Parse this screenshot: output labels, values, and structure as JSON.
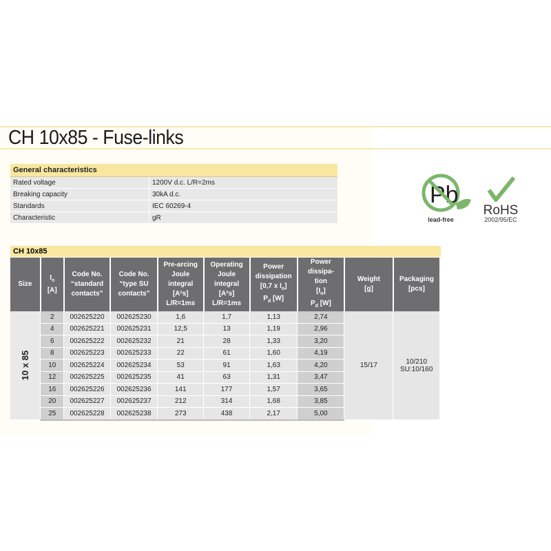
{
  "title": "CH 10x85 - Fuse-links",
  "general": {
    "header": "General characteristics",
    "rows": [
      {
        "k": "Rated voltage",
        "v": "1200V d.c. L/R=2ms"
      },
      {
        "k": "Breaking capacity",
        "v": "30kA d.c."
      },
      {
        "k": "Standards",
        "v": "IEC 60269-4"
      },
      {
        "k": "Characteristic",
        "v": "gR"
      }
    ]
  },
  "logos": {
    "lead_free": "lead-free",
    "pb": "Pb",
    "rohs": "RoHS",
    "rohs_directive": "2002/95/EC",
    "colors": {
      "green": "#7cb66b"
    }
  },
  "table": {
    "title": "CH 10x85",
    "headers": {
      "size": "Size",
      "in_1": "I",
      "in_sub": "n",
      "in_2": "[A]",
      "code_std": [
        "Code No.",
        "“standard",
        "contacts”"
      ],
      "code_su": [
        "Code No.",
        "“type SU",
        "contacts”"
      ],
      "pre": [
        "Pre-arcing",
        "Joule integral",
        "[A²s]",
        "L/R=1ms"
      ],
      "op": [
        "Operating",
        "Joule integral",
        "[A²s]",
        "L/R=1ms"
      ],
      "pd07": [
        "Power",
        "dissipation",
        "[0,7 x I",
        "]",
        "P",
        "[W]"
      ],
      "pdn": [
        "Power dissipa-",
        "tion",
        "[I",
        "]",
        "P",
        "[W]"
      ],
      "sub_n": "n",
      "sub_d": "d",
      "weight": [
        "Weight",
        "[g]"
      ],
      "pack": [
        "Packaging",
        "[pcs]"
      ]
    },
    "size": "10 x 85",
    "weight": "15/17",
    "packaging": [
      "10/210",
      "SU:10/160"
    ],
    "rows": [
      [
        "2",
        "002625220",
        "002625230",
        "1,6",
        "1,7",
        "1,13",
        "2,74"
      ],
      [
        "4",
        "002625221",
        "002625231",
        "12,5",
        "13",
        "1,19",
        "2,96"
      ],
      [
        "6",
        "002625222",
        "002625232",
        "21",
        "28",
        "1,33",
        "3,20"
      ],
      [
        "8",
        "002625223",
        "002625233",
        "22",
        "61",
        "1,60",
        "4,19"
      ],
      [
        "10",
        "002625224",
        "002625234",
        "53",
        "91",
        "1,63",
        "4,20"
      ],
      [
        "12",
        "002625225",
        "002625235",
        "41",
        "63",
        "1,31",
        "3,47"
      ],
      [
        "16",
        "002625226",
        "002625236",
        "141",
        "177",
        "1,57",
        "3,65"
      ],
      [
        "20",
        "002625227",
        "002625237",
        "212",
        "314",
        "1,68",
        "3,85"
      ],
      [
        "25",
        "002625228",
        "002625238",
        "273",
        "438",
        "2,17",
        "5,00"
      ]
    ]
  }
}
